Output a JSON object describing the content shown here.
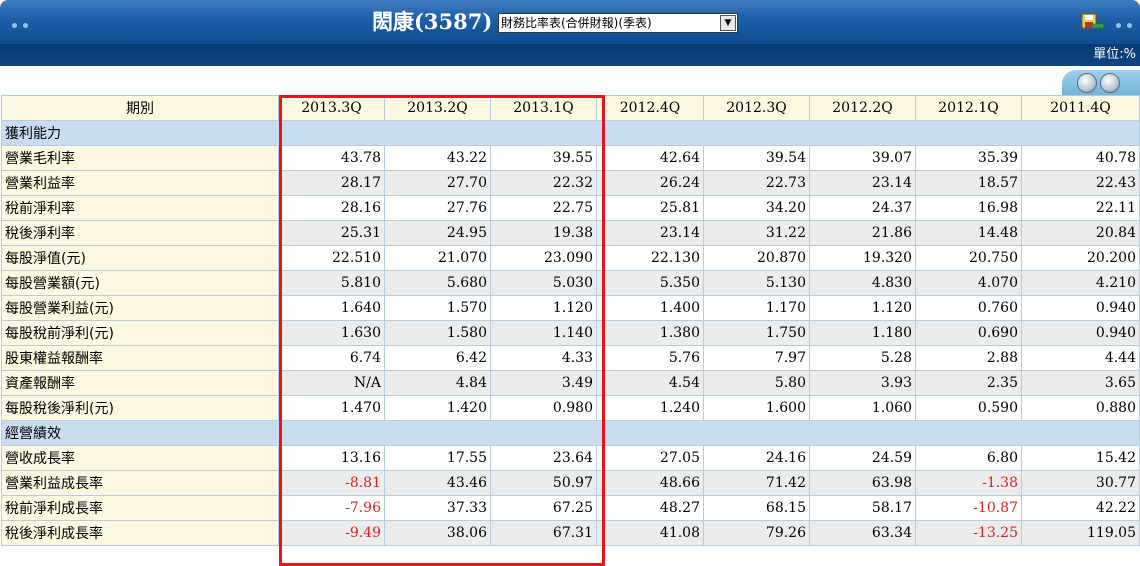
{
  "header": {
    "title": "閎康(3587)",
    "report_select": "財務比率表(合併財報)(季表)",
    "unit": "單位:%"
  },
  "colors": {
    "header_blue": "#1d5ea8",
    "navbar": "#0b3a72",
    "section": "#c9dcf0",
    "label_bg": "#fdf8e1",
    "negative": "#e02020",
    "highlight": "#e8141c"
  },
  "icons": [
    "save-icon",
    "lock-icon",
    "print-icon"
  ],
  "table": {
    "columns": [
      "期別",
      "2013.3Q",
      "2013.2Q",
      "2013.1Q",
      "2012.4Q",
      "2012.3Q",
      "2012.2Q",
      "2012.1Q",
      "2011.4Q"
    ],
    "rows": [
      {
        "section": "獲利能力"
      },
      {
        "label": "營業毛利率",
        "values": [
          "43.78",
          "43.22",
          "39.55",
          "42.64",
          "39.54",
          "39.07",
          "35.39",
          "40.78"
        ]
      },
      {
        "label": "營業利益率",
        "values": [
          "28.17",
          "27.70",
          "22.32",
          "26.24",
          "22.73",
          "23.14",
          "18.57",
          "22.43"
        ]
      },
      {
        "label": "稅前淨利率",
        "values": [
          "28.16",
          "27.76",
          "22.75",
          "25.81",
          "34.20",
          "24.37",
          "16.98",
          "22.11"
        ]
      },
      {
        "label": "稅後淨利率",
        "values": [
          "25.31",
          "24.95",
          "19.38",
          "23.14",
          "31.22",
          "21.86",
          "14.48",
          "20.84"
        ]
      },
      {
        "label": "每股淨值(元)",
        "values": [
          "22.510",
          "21.070",
          "23.090",
          "22.130",
          "20.870",
          "19.320",
          "20.750",
          "20.200"
        ]
      },
      {
        "label": "每股營業額(元)",
        "values": [
          "5.810",
          "5.680",
          "5.030",
          "5.350",
          "5.130",
          "4.830",
          "4.070",
          "4.210"
        ]
      },
      {
        "label": "每股營業利益(元)",
        "values": [
          "1.640",
          "1.570",
          "1.120",
          "1.400",
          "1.170",
          "1.120",
          "0.760",
          "0.940"
        ]
      },
      {
        "label": "每股稅前淨利(元)",
        "values": [
          "1.630",
          "1.580",
          "1.140",
          "1.380",
          "1.750",
          "1.180",
          "0.690",
          "0.940"
        ]
      },
      {
        "label": "股東權益報酬率",
        "values": [
          "6.74",
          "6.42",
          "4.33",
          "5.76",
          "7.97",
          "5.28",
          "2.88",
          "4.44"
        ]
      },
      {
        "label": "資產報酬率",
        "values": [
          "N/A",
          "4.84",
          "3.49",
          "4.54",
          "5.80",
          "3.93",
          "2.35",
          "3.65"
        ]
      },
      {
        "label": "每股稅後淨利(元)",
        "values": [
          "1.470",
          "1.420",
          "0.980",
          "1.240",
          "1.600",
          "1.060",
          "0.590",
          "0.880"
        ]
      },
      {
        "section": "經營績效"
      },
      {
        "label": "營收成長率",
        "values": [
          "13.16",
          "17.55",
          "23.64",
          "27.05",
          "24.16",
          "24.59",
          "6.80",
          "15.42"
        ]
      },
      {
        "label": "營業利益成長率",
        "values": [
          "-8.81",
          "43.46",
          "50.97",
          "48.66",
          "71.42",
          "63.98",
          "-1.38",
          "30.77"
        ]
      },
      {
        "label": "稅前淨利成長率",
        "values": [
          "-7.96",
          "37.33",
          "67.25",
          "48.27",
          "68.15",
          "58.17",
          "-10.87",
          "42.22"
        ]
      },
      {
        "label": "稅後淨利成長率",
        "values": [
          "-9.49",
          "38.06",
          "67.31",
          "41.08",
          "79.26",
          "63.34",
          "-13.25",
          "119.05"
        ]
      }
    ]
  }
}
